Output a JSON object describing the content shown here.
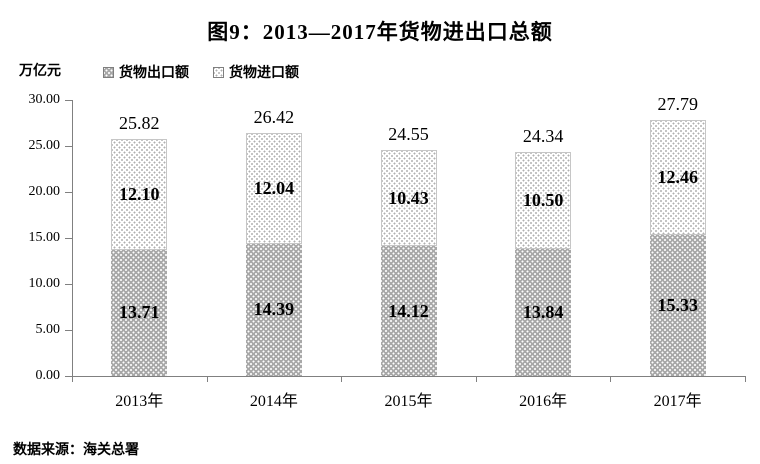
{
  "title": "图9：2013—2017年货物进出口总额",
  "unit_label": "万亿元",
  "legend": [
    {
      "label": "货物出口额",
      "swatch": "gray-dot-pattern-swatch"
    },
    {
      "label": "货物进口额",
      "swatch": "white-dot-pattern-swatch"
    }
  ],
  "source": "数据来源：海关总署",
  "colors": {
    "export_fill": "#a8a8a8",
    "export_dot": "#ffffff",
    "import_fill": "#ffffff",
    "import_dot": "#b0b0b0",
    "axis": "#808080",
    "text": "#000000"
  },
  "chart_data": {
    "type": "bar",
    "stacked": true,
    "title": "图9：2013—2017年货物进出口总额",
    "ylabel": "万亿元",
    "xlabel": "",
    "categories": [
      "2013年",
      "2014年",
      "2015年",
      "2016年",
      "2017年"
    ],
    "series": [
      {
        "name": "货物出口额",
        "values": [
          13.71,
          14.39,
          14.12,
          13.84,
          15.33
        ]
      },
      {
        "name": "货物进口额",
        "values": [
          12.1,
          12.04,
          10.43,
          10.5,
          12.46
        ]
      }
    ],
    "totals": [
      25.82,
      26.42,
      24.55,
      24.34,
      27.79
    ],
    "ylim": [
      0,
      30
    ],
    "ytick_step": 5,
    "ytick_labels": [
      "0.00",
      "5.00",
      "10.00",
      "15.00",
      "20.00",
      "25.00",
      "30.00"
    ],
    "grid": false,
    "legend_position": "top-left",
    "data_labels": "inside-segments-and-total-above"
  }
}
